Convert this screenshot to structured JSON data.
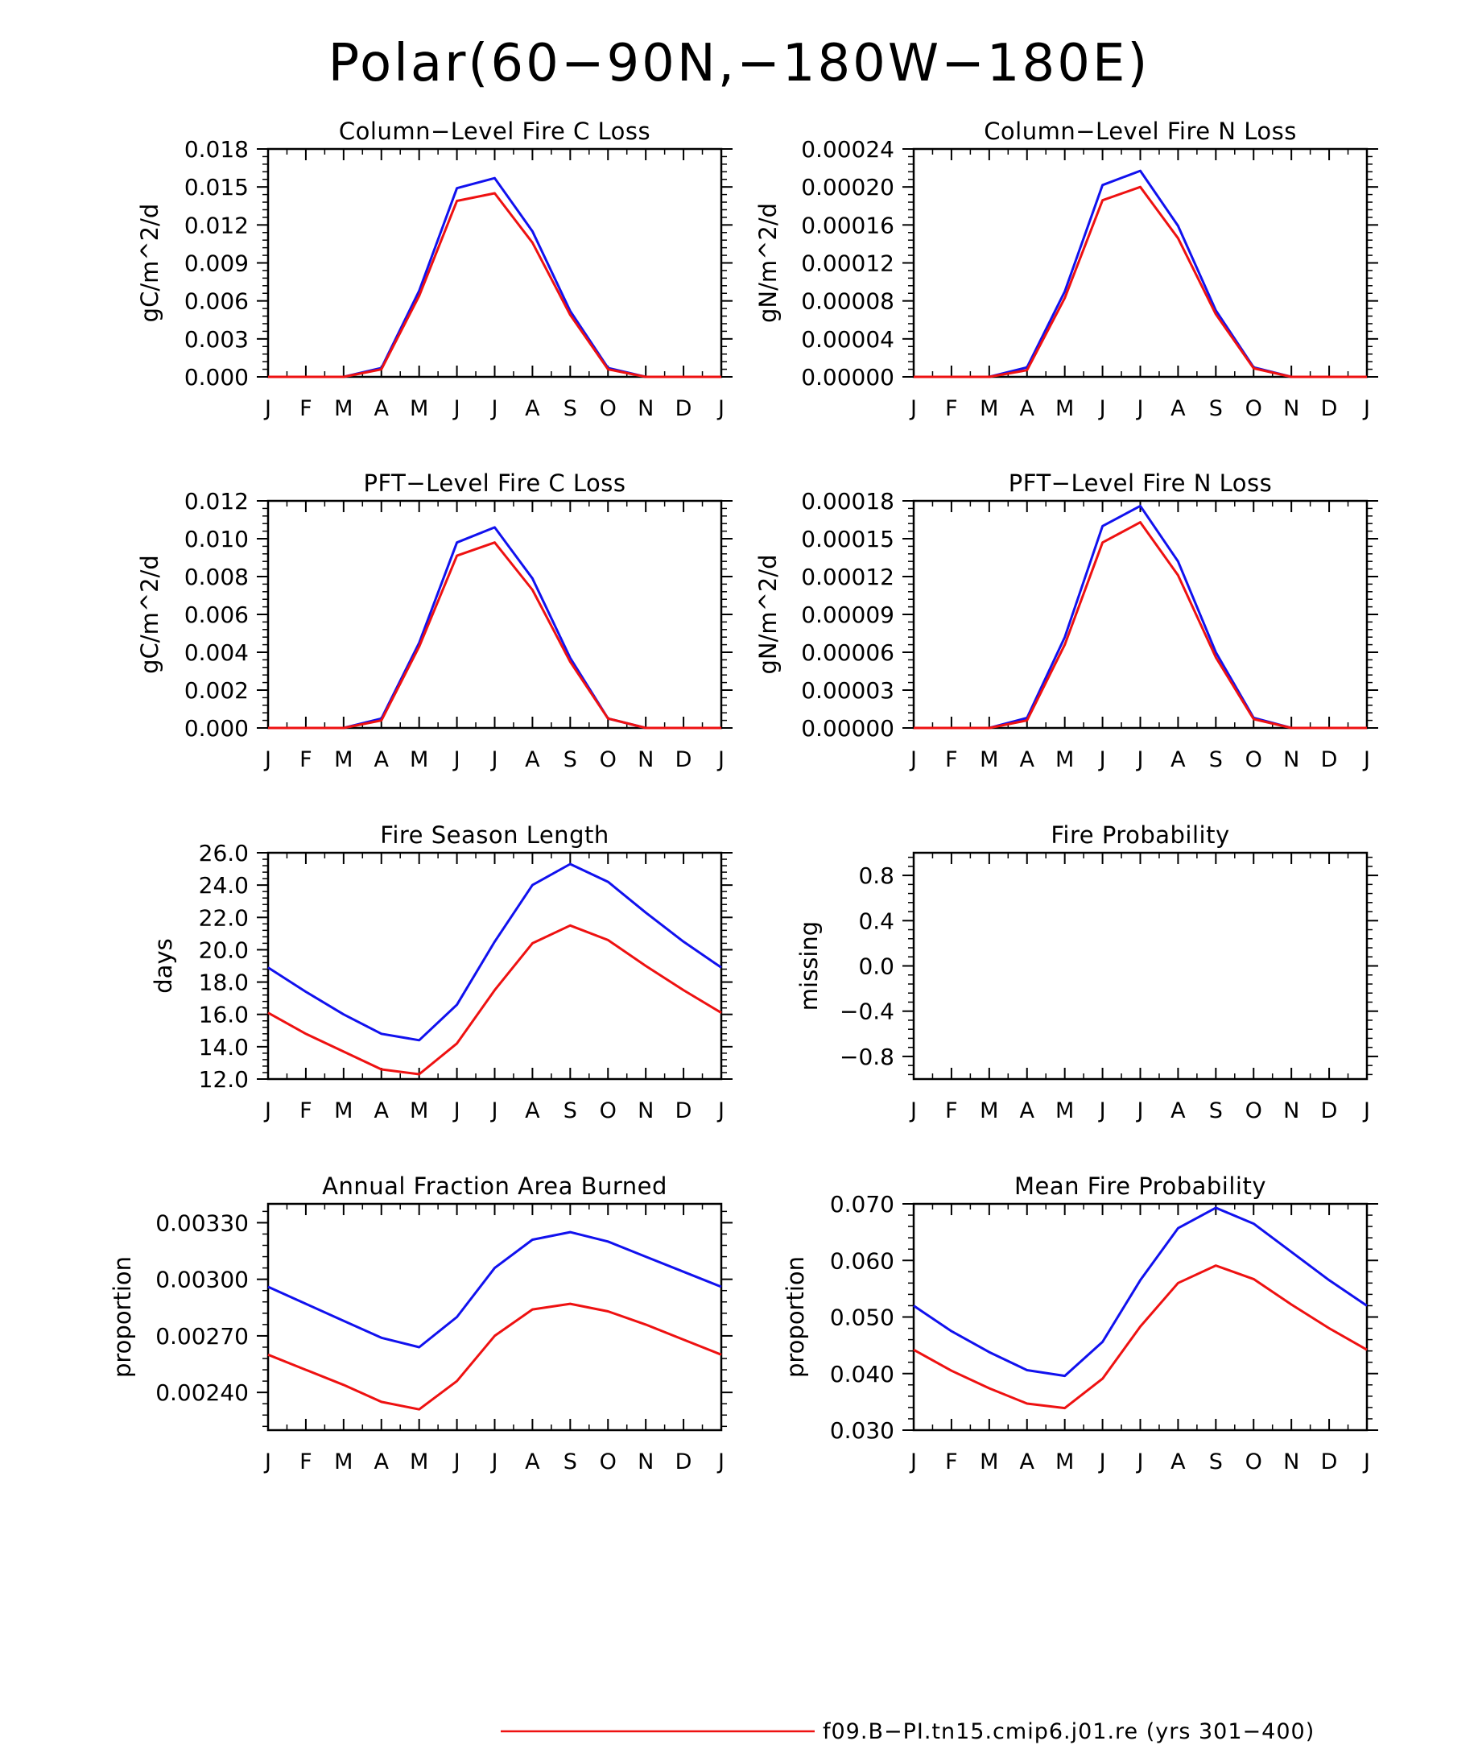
{
  "title": "Polar(60−90N,−180W−180E)",
  "colors": {
    "red_series": "#ee1111",
    "blue_series": "#1111ee",
    "axis": "#000000"
  },
  "legend": {
    "entries": [
      {
        "label": "f09.B−PI.tn15.cmip6.j01.re (yrs 301−400)",
        "color": "#ee1111"
      }
    ]
  },
  "chart_data": [
    {
      "type": "line",
      "title": "Column−Level Fire C Loss",
      "ylabel": "gC/m^2/d",
      "x": [
        "J",
        "F",
        "M",
        "A",
        "M",
        "J",
        "J",
        "A",
        "S",
        "O",
        "N",
        "D",
        "J"
      ],
      "ylim": [
        0,
        0.018
      ],
      "yticks": [
        0,
        0.003,
        0.006,
        0.009,
        0.012,
        0.015,
        0.018
      ],
      "ytick_labels": [
        "0.000",
        "0.003",
        "0.006",
        "0.009",
        "0.012",
        "0.015",
        "0.018"
      ],
      "series": [
        {
          "color": "#1111ee",
          "values": [
            0,
            0,
            0,
            0.0007,
            0.0068,
            0.0149,
            0.0157,
            0.0115,
            0.0052,
            0.0007,
            0,
            0,
            0
          ]
        },
        {
          "color": "#ee1111",
          "values": [
            0,
            0,
            0,
            0.0006,
            0.0064,
            0.0139,
            0.0145,
            0.0106,
            0.0049,
            0.0006,
            0,
            0,
            0
          ]
        }
      ]
    },
    {
      "type": "line",
      "title": "Column−Level Fire N Loss",
      "ylabel": "gN/m^2/d",
      "x": [
        "J",
        "F",
        "M",
        "A",
        "M",
        "J",
        "J",
        "A",
        "S",
        "O",
        "N",
        "D",
        "J"
      ],
      "ylim": [
        0,
        0.00024
      ],
      "yticks": [
        0,
        4e-05,
        8e-05,
        0.00012,
        0.00016,
        0.0002,
        0.00024
      ],
      "ytick_labels": [
        "0.00000",
        "0.00004",
        "0.00008",
        "0.00012",
        "0.00016",
        "0.00020",
        "0.00024"
      ],
      "series": [
        {
          "color": "#1111ee",
          "values": [
            0,
            0,
            0,
            1e-05,
            9e-05,
            0.000202,
            0.000217,
            0.000159,
            7e-05,
            1e-05,
            0,
            0,
            0
          ]
        },
        {
          "color": "#ee1111",
          "values": [
            0,
            0,
            0,
            7e-06,
            8.3e-05,
            0.000186,
            0.0002,
            0.000146,
            6.6e-05,
            9e-06,
            0,
            0,
            0
          ]
        }
      ]
    },
    {
      "type": "line",
      "title": "PFT−Level Fire C Loss",
      "ylabel": "gC/m^2/d",
      "x": [
        "J",
        "F",
        "M",
        "A",
        "M",
        "J",
        "J",
        "A",
        "S",
        "O",
        "N",
        "D",
        "J"
      ],
      "ylim": [
        0,
        0.012
      ],
      "yticks": [
        0,
        0.002,
        0.004,
        0.006,
        0.008,
        0.01,
        0.012
      ],
      "ytick_labels": [
        "0.000",
        "0.002",
        "0.004",
        "0.006",
        "0.008",
        "0.010",
        "0.012"
      ],
      "series": [
        {
          "color": "#1111ee",
          "values": [
            0,
            0,
            0,
            0.0005,
            0.0045,
            0.0098,
            0.0106,
            0.0079,
            0.0037,
            0.0005,
            0,
            0,
            0
          ]
        },
        {
          "color": "#ee1111",
          "values": [
            0,
            0,
            0,
            0.0004,
            0.0043,
            0.0091,
            0.0098,
            0.0073,
            0.0035,
            0.0005,
            0,
            0,
            0
          ]
        }
      ]
    },
    {
      "type": "line",
      "title": "PFT−Level Fire N Loss",
      "ylabel": "gN/m^2/d",
      "x": [
        "J",
        "F",
        "M",
        "A",
        "M",
        "J",
        "J",
        "A",
        "S",
        "O",
        "N",
        "D",
        "J"
      ],
      "ylim": [
        0,
        0.00018
      ],
      "yticks": [
        0,
        3e-05,
        6e-05,
        9e-05,
        0.00012,
        0.00015,
        0.00018
      ],
      "ytick_labels": [
        "0.00000",
        "0.00003",
        "0.00006",
        "0.00009",
        "0.00012",
        "0.00015",
        "0.00018"
      ],
      "series": [
        {
          "color": "#1111ee",
          "values": [
            0,
            0,
            0,
            8e-06,
            7.2e-05,
            0.00016,
            0.000176,
            0.000132,
            6e-05,
            8e-06,
            0,
            0,
            0
          ]
        },
        {
          "color": "#ee1111",
          "values": [
            0,
            0,
            0,
            6e-06,
            6.6e-05,
            0.000147,
            0.000163,
            0.000121,
            5.6e-05,
            7e-06,
            0,
            0,
            0
          ]
        }
      ]
    },
    {
      "type": "line",
      "title": "Fire Season Length",
      "ylabel": "days",
      "x": [
        "J",
        "F",
        "M",
        "A",
        "M",
        "J",
        "J",
        "A",
        "S",
        "O",
        "N",
        "D",
        "J"
      ],
      "ylim": [
        12,
        26
      ],
      "yticks": [
        12,
        14,
        16,
        18,
        20,
        22,
        24,
        26
      ],
      "ytick_labels": [
        "12.0",
        "14.0",
        "16.0",
        "18.0",
        "20.0",
        "22.0",
        "24.0",
        "26.0"
      ],
      "series": [
        {
          "color": "#1111ee",
          "values": [
            18.9,
            17.4,
            16.0,
            14.8,
            14.4,
            16.6,
            20.5,
            24.0,
            25.3,
            24.2,
            22.3,
            20.5,
            18.9
          ]
        },
        {
          "color": "#ee1111",
          "values": [
            16.1,
            14.8,
            13.7,
            12.6,
            12.3,
            14.2,
            17.5,
            20.4,
            21.5,
            20.6,
            19.0,
            17.5,
            16.1
          ]
        }
      ]
    },
    {
      "type": "line",
      "title": "Fire Probability",
      "ylabel": "missing",
      "x": [
        "J",
        "F",
        "M",
        "A",
        "M",
        "J",
        "J",
        "A",
        "S",
        "O",
        "N",
        "D",
        "J"
      ],
      "ylim": [
        -1,
        1
      ],
      "yticks": [
        -0.8,
        -0.4,
        0,
        0.4,
        0.8
      ],
      "ytick_labels": [
        "−0.8",
        "−0.4",
        "0.0",
        "0.4",
        "0.8"
      ],
      "series": []
    },
    {
      "type": "line",
      "title": "Annual Fraction Area Burned",
      "ylabel": "proportion",
      "x": [
        "J",
        "F",
        "M",
        "A",
        "M",
        "J",
        "J",
        "A",
        "S",
        "O",
        "N",
        "D",
        "J"
      ],
      "ylim": [
        0.0022,
        0.0034
      ],
      "yticks": [
        0.0024,
        0.0027,
        0.003,
        0.0033
      ],
      "ytick_labels": [
        "0.00240",
        "0.00270",
        "0.00300",
        "0.00330"
      ],
      "series": [
        {
          "color": "#1111ee",
          "values": [
            0.00296,
            0.00287,
            0.00278,
            0.00269,
            0.00264,
            0.0028,
            0.00306,
            0.00321,
            0.00325,
            0.0032,
            0.00312,
            0.00304,
            0.00296
          ]
        },
        {
          "color": "#ee1111",
          "values": [
            0.0026,
            0.00252,
            0.00244,
            0.00235,
            0.00231,
            0.00246,
            0.0027,
            0.00284,
            0.00287,
            0.00283,
            0.00276,
            0.00268,
            0.0026
          ]
        }
      ]
    },
    {
      "type": "line",
      "title": "Mean Fire Probability",
      "ylabel": "proportion",
      "x": [
        "J",
        "F",
        "M",
        "A",
        "M",
        "J",
        "J",
        "A",
        "S",
        "O",
        "N",
        "D",
        "J"
      ],
      "ylim": [
        0.03,
        0.07
      ],
      "yticks": [
        0.03,
        0.04,
        0.05,
        0.06,
        0.07
      ],
      "ytick_labels": [
        "0.030",
        "0.040",
        "0.050",
        "0.060",
        "0.070"
      ],
      "series": [
        {
          "color": "#1111ee",
          "values": [
            0.052,
            0.0475,
            0.0438,
            0.0406,
            0.0396,
            0.0456,
            0.0565,
            0.0657,
            0.0693,
            0.0665,
            0.0615,
            0.0565,
            0.052
          ]
        },
        {
          "color": "#ee1111",
          "values": [
            0.0442,
            0.0405,
            0.0374,
            0.0347,
            0.0339,
            0.0391,
            0.0483,
            0.056,
            0.0591,
            0.0567,
            0.0522,
            0.048,
            0.0442
          ]
        }
      ]
    }
  ]
}
